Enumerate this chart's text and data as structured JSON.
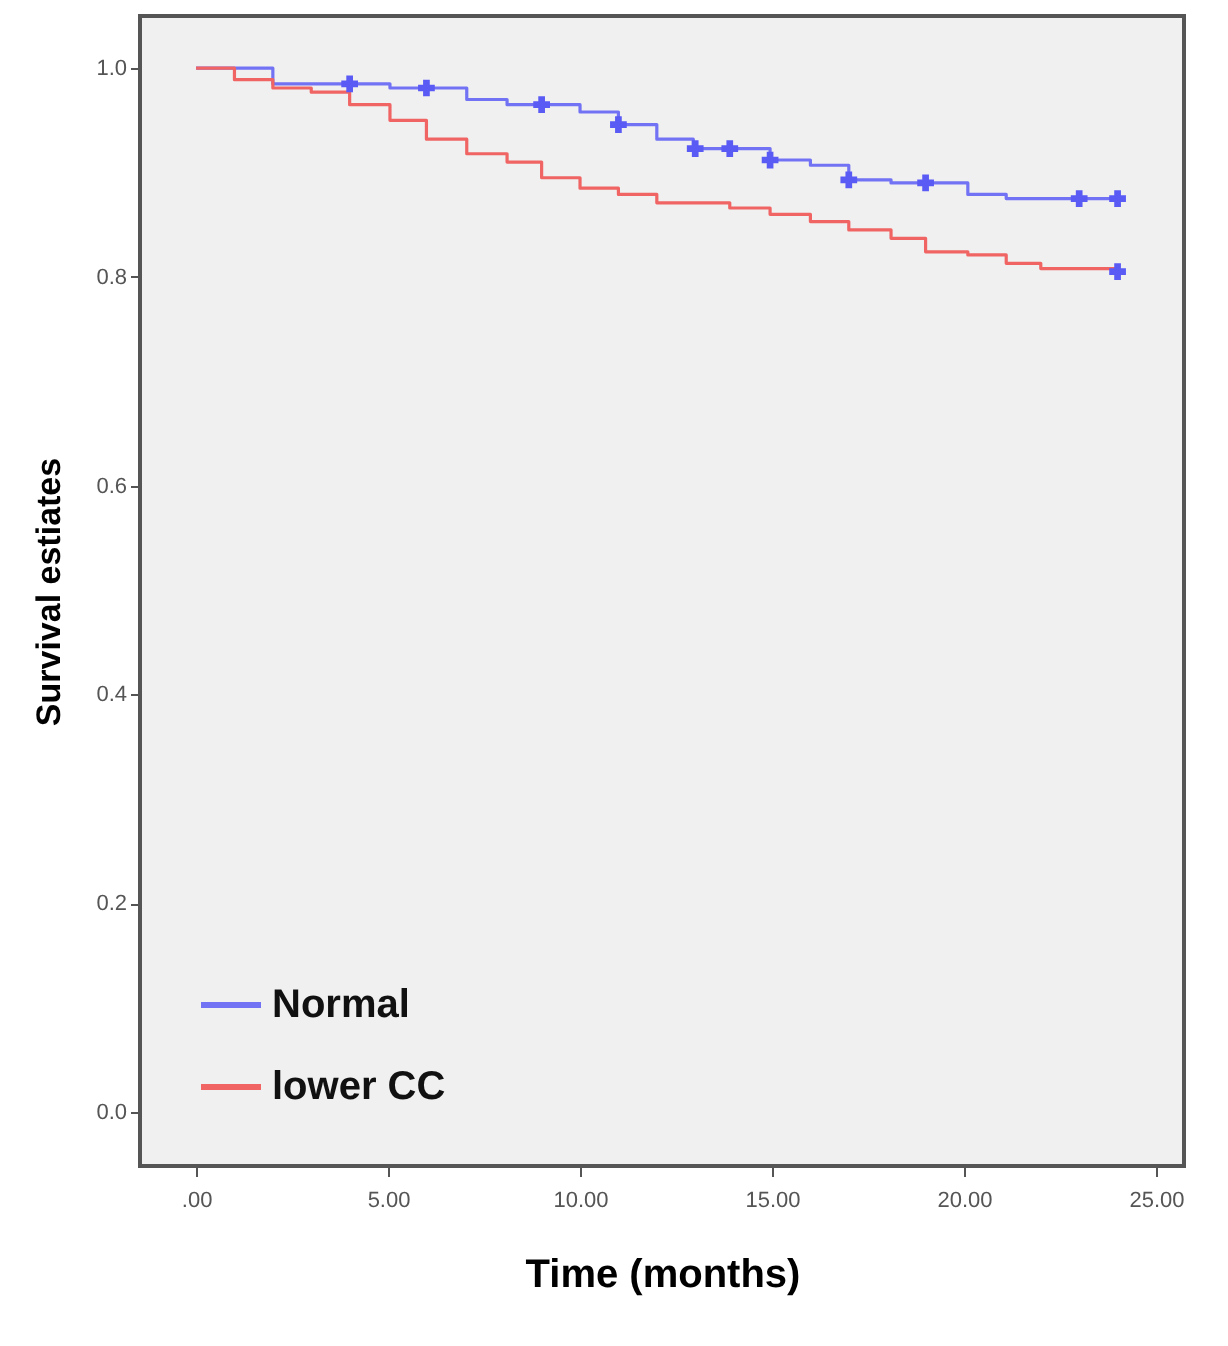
{
  "chart_data": {
    "type": "step",
    "xlabel": "Time (months)",
    "ylabel": "Survival estiates",
    "xlim": [
      -1.46,
      25.73
    ],
    "ylim": [
      -0.052,
      1.05
    ],
    "xticks": [
      {
        "value": 0,
        "label": ".00"
      },
      {
        "value": 5,
        "label": "5.00"
      },
      {
        "value": 10,
        "label": "10.00"
      },
      {
        "value": 15,
        "label": "15.00"
      },
      {
        "value": 20,
        "label": "20.00"
      },
      {
        "value": 25,
        "label": "25.00"
      }
    ],
    "yticks": [
      {
        "value": 0,
        "label": "0.0"
      },
      {
        "value": 0.2,
        "label": "0.2"
      },
      {
        "value": 0.4,
        "label": "0.4"
      },
      {
        "value": 0.6,
        "label": "0.6"
      },
      {
        "value": 0.8,
        "label": "0.8"
      },
      {
        "value": 1,
        "label": "1.0"
      }
    ],
    "grid": false,
    "legend": "bottom left",
    "series": [
      {
        "name": "Normal",
        "color": "#7272f5",
        "x": [
          0,
          2.0,
          5.05,
          7.05,
          8.1,
          10.0,
          11.0,
          12.0,
          12.95,
          14.95,
          16.0,
          17.0,
          18.1,
          20.1,
          21.1,
          24.0
        ],
        "values": [
          1.0,
          0.985,
          0.981,
          0.97,
          0.965,
          0.958,
          0.946,
          0.932,
          0.923,
          0.912,
          0.907,
          0.893,
          0.89,
          0.879,
          0.875,
          0.875
        ]
      },
      {
        "name": "lower CC",
        "color": "#f06464",
        "x": [
          0,
          1.0,
          2.0,
          3.0,
          4.0,
          5.05,
          6.0,
          7.05,
          8.1,
          9.0,
          10.0,
          11.0,
          12.0,
          13.9,
          14.95,
          16.0,
          17.0,
          18.1,
          19.0,
          20.1,
          21.1,
          22.0,
          24.0
        ],
        "values": [
          1.0,
          0.989,
          0.981,
          0.977,
          0.965,
          0.95,
          0.932,
          0.918,
          0.91,
          0.895,
          0.885,
          0.879,
          0.871,
          0.866,
          0.86,
          0.853,
          0.845,
          0.837,
          0.824,
          0.821,
          0.813,
          0.808,
          0.805
        ]
      },
      {
        "type": "scatter",
        "marker": "cross",
        "color": "#5a5af5",
        "x": [
          4.0,
          6.0,
          9.0,
          11.0,
          13.0,
          13.9,
          14.95,
          17.0,
          19.0,
          23.0,
          24.0,
          24.0
        ],
        "values": [
          0.985,
          0.981,
          0.965,
          0.946,
          0.923,
          0.923,
          0.912,
          0.893,
          0.89,
          0.875,
          0.875,
          0.805
        ]
      }
    ]
  }
}
